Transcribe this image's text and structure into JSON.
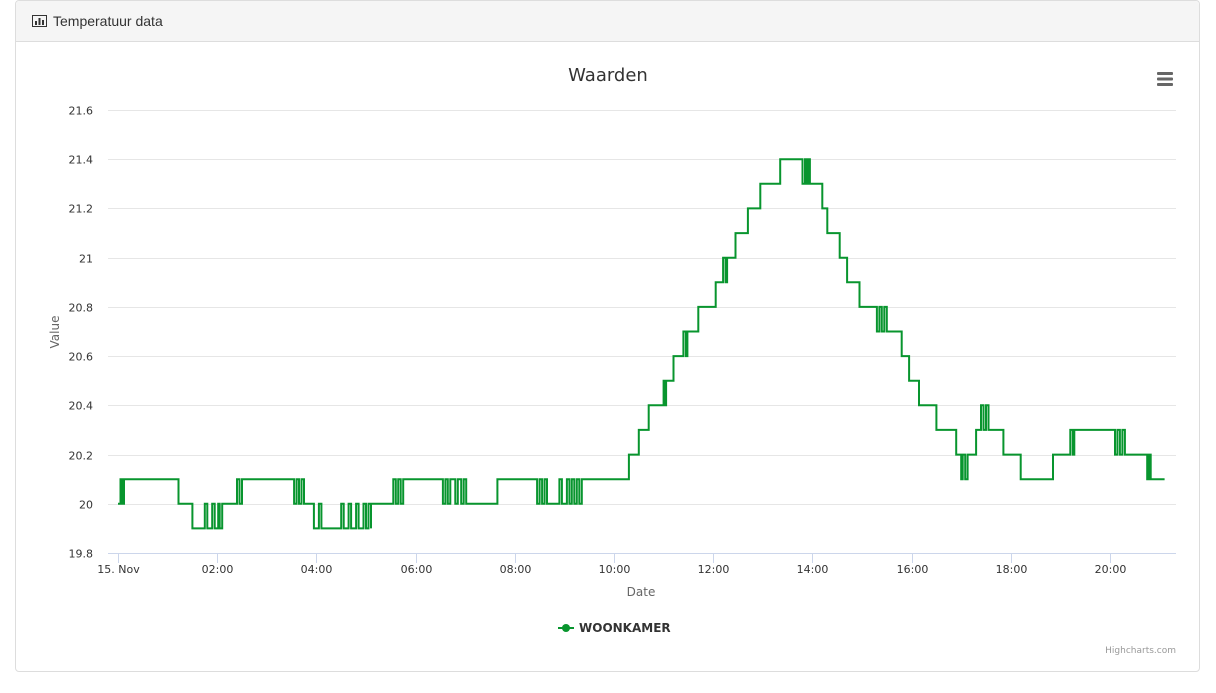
{
  "panel": {
    "title": "Temperatuur data",
    "icon": "bar-chart-icon"
  },
  "colors": {
    "series": "#08952e",
    "grid": "#e6e6e6",
    "axis_line": "#ccd6eb",
    "text": "#666666",
    "title": "#333333"
  },
  "chart_data": {
    "type": "line",
    "step": true,
    "title": "Waarden",
    "xlabel": "Date",
    "ylabel": "Value",
    "ylim": [
      19.8,
      21.6
    ],
    "y_ticks": [
      19.8,
      20,
      20.2,
      20.4,
      20.6,
      20.8,
      21,
      21.2,
      21.4,
      21.6
    ],
    "y_tick_labels": [
      "19.8",
      "20",
      "20.2",
      "20.4",
      "20.6",
      "20.8",
      "21",
      "21.2",
      "21.4",
      "21.6"
    ],
    "x_ticks": [
      0,
      2,
      4,
      6,
      8,
      10,
      12,
      14,
      16,
      18,
      20
    ],
    "x_tick_labels": [
      "15. Nov",
      "02:00",
      "04:00",
      "06:00",
      "08:00",
      "10:00",
      "12:00",
      "14:00",
      "16:00",
      "18:00",
      "20:00"
    ],
    "x_unit": "hours since 15 Nov 00:00",
    "xlim": [
      0,
      21.2
    ],
    "grid": true,
    "legend_position": "bottom-center",
    "credits": "Highcharts.com",
    "series": [
      {
        "name": "WOONKAMER",
        "points": [
          [
            0.0,
            20.0
          ],
          [
            0.05,
            20.1
          ],
          [
            0.08,
            20.0
          ],
          [
            0.12,
            20.1
          ],
          [
            1.22,
            20.0
          ],
          [
            1.5,
            19.9
          ],
          [
            1.75,
            20.0
          ],
          [
            1.8,
            19.9
          ],
          [
            1.9,
            20.0
          ],
          [
            1.95,
            19.9
          ],
          [
            2.02,
            20.0
          ],
          [
            2.05,
            19.9
          ],
          [
            2.1,
            20.0
          ],
          [
            2.4,
            20.1
          ],
          [
            2.45,
            20.0
          ],
          [
            2.5,
            20.1
          ],
          [
            3.55,
            20.0
          ],
          [
            3.6,
            20.1
          ],
          [
            3.65,
            20.0
          ],
          [
            3.7,
            20.1
          ],
          [
            3.75,
            20.0
          ],
          [
            3.95,
            19.9
          ],
          [
            4.05,
            20.0
          ],
          [
            4.1,
            19.9
          ],
          [
            4.5,
            20.0
          ],
          [
            4.55,
            19.9
          ],
          [
            4.65,
            20.0
          ],
          [
            4.7,
            19.9
          ],
          [
            4.8,
            20.0
          ],
          [
            4.85,
            19.9
          ],
          [
            4.95,
            20.0
          ],
          [
            5.0,
            19.9
          ],
          [
            5.05,
            20.0
          ],
          [
            5.1,
            19.9
          ],
          [
            5.1,
            20.0
          ],
          [
            5.55,
            20.1
          ],
          [
            5.6,
            20.0
          ],
          [
            5.65,
            20.1
          ],
          [
            5.7,
            20.0
          ],
          [
            5.75,
            20.1
          ],
          [
            6.55,
            20.0
          ],
          [
            6.6,
            20.1
          ],
          [
            6.65,
            20.0
          ],
          [
            6.7,
            20.1
          ],
          [
            6.8,
            20.0
          ],
          [
            6.85,
            20.1
          ],
          [
            6.92,
            20.0
          ],
          [
            6.97,
            20.1
          ],
          [
            7.02,
            20.0
          ],
          [
            7.65,
            20.1
          ],
          [
            8.45,
            20.0
          ],
          [
            8.5,
            20.1
          ],
          [
            8.55,
            20.0
          ],
          [
            8.6,
            20.1
          ],
          [
            8.65,
            20.0
          ],
          [
            8.9,
            20.1
          ],
          [
            8.95,
            20.0
          ],
          [
            9.05,
            20.1
          ],
          [
            9.1,
            20.0
          ],
          [
            9.15,
            20.1
          ],
          [
            9.2,
            20.0
          ],
          [
            9.25,
            20.1
          ],
          [
            9.3,
            20.0
          ],
          [
            9.35,
            20.1
          ],
          [
            10.3,
            20.2
          ],
          [
            10.5,
            20.3
          ],
          [
            10.7,
            20.4
          ],
          [
            11.0,
            20.5
          ],
          [
            11.02,
            20.4
          ],
          [
            11.05,
            20.5
          ],
          [
            11.2,
            20.6
          ],
          [
            11.4,
            20.7
          ],
          [
            11.45,
            20.6
          ],
          [
            11.48,
            20.7
          ],
          [
            11.7,
            20.8
          ],
          [
            12.05,
            20.9
          ],
          [
            12.2,
            21.0
          ],
          [
            12.25,
            20.9
          ],
          [
            12.28,
            21.0
          ],
          [
            12.45,
            21.1
          ],
          [
            12.7,
            21.2
          ],
          [
            12.95,
            21.3
          ],
          [
            13.35,
            21.4
          ],
          [
            13.8,
            21.3
          ],
          [
            13.85,
            21.4
          ],
          [
            13.88,
            21.3
          ],
          [
            13.92,
            21.4
          ],
          [
            13.95,
            21.3
          ],
          [
            14.2,
            21.2
          ],
          [
            14.3,
            21.1
          ],
          [
            14.55,
            21.0
          ],
          [
            14.7,
            20.9
          ],
          [
            14.95,
            20.8
          ],
          [
            15.3,
            20.7
          ],
          [
            15.35,
            20.8
          ],
          [
            15.4,
            20.7
          ],
          [
            15.45,
            20.8
          ],
          [
            15.5,
            20.7
          ],
          [
            15.8,
            20.6
          ],
          [
            15.95,
            20.5
          ],
          [
            16.15,
            20.4
          ],
          [
            16.5,
            20.3
          ],
          [
            16.9,
            20.2
          ],
          [
            17.0,
            20.1
          ],
          [
            17.03,
            20.2
          ],
          [
            17.08,
            20.1
          ],
          [
            17.13,
            20.2
          ],
          [
            17.3,
            20.3
          ],
          [
            17.4,
            20.4
          ],
          [
            17.45,
            20.3
          ],
          [
            17.5,
            20.4
          ],
          [
            17.55,
            20.3
          ],
          [
            17.85,
            20.2
          ],
          [
            18.2,
            20.1
          ],
          [
            18.85,
            20.2
          ],
          [
            19.2,
            20.3
          ],
          [
            19.25,
            20.2
          ],
          [
            19.28,
            20.3
          ],
          [
            20.1,
            20.2
          ],
          [
            20.15,
            20.3
          ],
          [
            20.2,
            20.2
          ],
          [
            20.25,
            20.3
          ],
          [
            20.3,
            20.2
          ],
          [
            20.75,
            20.1
          ],
          [
            20.78,
            20.2
          ],
          [
            20.82,
            20.1
          ],
          [
            21.1,
            20.1
          ]
        ]
      }
    ]
  }
}
